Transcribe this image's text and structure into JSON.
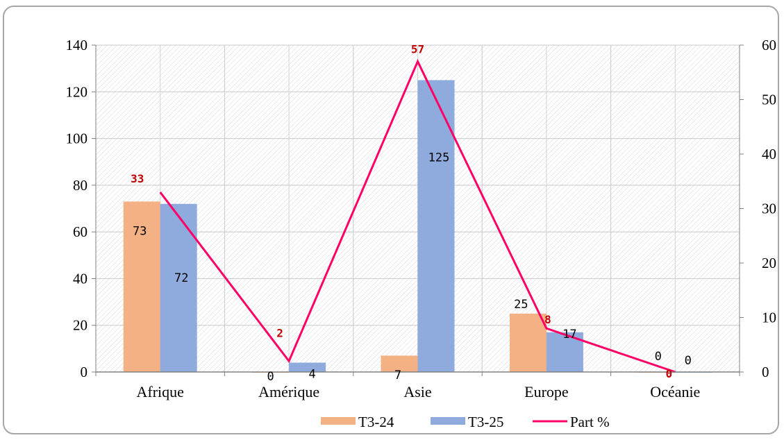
{
  "chart_data": {
    "type": "bar",
    "categories": [
      "Afrique",
      "Amérique",
      "Asie",
      "Europe",
      "Océanie"
    ],
    "series": [
      {
        "name": "T3-24",
        "kind": "bar",
        "axis": "left",
        "color": "#f4b183",
        "values": [
          73,
          0,
          7,
          25,
          0
        ],
        "labels": [
          "73",
          "0",
          "7",
          "25",
          "0"
        ]
      },
      {
        "name": "T3-25",
        "kind": "bar",
        "axis": "left",
        "color": "#8faadc",
        "values": [
          72,
          4,
          125,
          17,
          0
        ],
        "labels": [
          "72",
          "4",
          "125",
          "17",
          "0"
        ]
      },
      {
        "name": "Part %",
        "kind": "line",
        "axis": "right",
        "color": "#ff0066",
        "values": [
          33,
          2,
          57,
          8,
          0
        ],
        "labels": [
          "33",
          "2",
          "57",
          "8",
          "0"
        ]
      }
    ],
    "ylim": [
      0,
      140
    ],
    "y_ticks": [
      "0",
      "20",
      "40",
      "60",
      "80",
      "100",
      "120",
      "140"
    ],
    "y2lim": [
      0,
      60
    ],
    "y2_ticks": [
      "0",
      "10",
      "20",
      "30",
      "40",
      "50",
      "60"
    ],
    "grid": true,
    "legend_position": "bottom"
  }
}
